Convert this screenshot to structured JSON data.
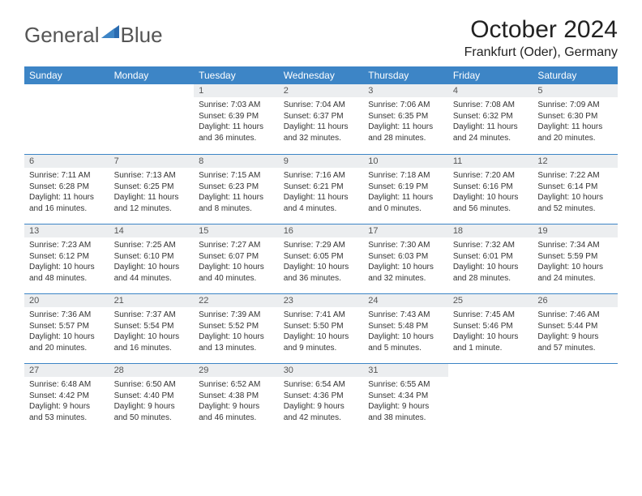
{
  "logo": {
    "part1": "General",
    "part2": "Blue"
  },
  "title": "October 2024",
  "location": "Frankfurt (Oder), Germany",
  "colors": {
    "header_bg": "#3d85c6",
    "header_text": "#ffffff",
    "daynum_bg": "#eceef0",
    "daynum_text": "#555555",
    "border": "#3d85c6",
    "body_text": "#333333",
    "logo_gray": "#555555",
    "logo_blue": "#3d85c6"
  },
  "weekdays": [
    "Sunday",
    "Monday",
    "Tuesday",
    "Wednesday",
    "Thursday",
    "Friday",
    "Saturday"
  ],
  "weeks": [
    [
      {
        "empty": true
      },
      {
        "empty": true
      },
      {
        "day": "1",
        "sunrise": "Sunrise: 7:03 AM",
        "sunset": "Sunset: 6:39 PM",
        "daylight": "Daylight: 11 hours and 36 minutes."
      },
      {
        "day": "2",
        "sunrise": "Sunrise: 7:04 AM",
        "sunset": "Sunset: 6:37 PM",
        "daylight": "Daylight: 11 hours and 32 minutes."
      },
      {
        "day": "3",
        "sunrise": "Sunrise: 7:06 AM",
        "sunset": "Sunset: 6:35 PM",
        "daylight": "Daylight: 11 hours and 28 minutes."
      },
      {
        "day": "4",
        "sunrise": "Sunrise: 7:08 AM",
        "sunset": "Sunset: 6:32 PM",
        "daylight": "Daylight: 11 hours and 24 minutes."
      },
      {
        "day": "5",
        "sunrise": "Sunrise: 7:09 AM",
        "sunset": "Sunset: 6:30 PM",
        "daylight": "Daylight: 11 hours and 20 minutes."
      }
    ],
    [
      {
        "day": "6",
        "sunrise": "Sunrise: 7:11 AM",
        "sunset": "Sunset: 6:28 PM",
        "daylight": "Daylight: 11 hours and 16 minutes."
      },
      {
        "day": "7",
        "sunrise": "Sunrise: 7:13 AM",
        "sunset": "Sunset: 6:25 PM",
        "daylight": "Daylight: 11 hours and 12 minutes."
      },
      {
        "day": "8",
        "sunrise": "Sunrise: 7:15 AM",
        "sunset": "Sunset: 6:23 PM",
        "daylight": "Daylight: 11 hours and 8 minutes."
      },
      {
        "day": "9",
        "sunrise": "Sunrise: 7:16 AM",
        "sunset": "Sunset: 6:21 PM",
        "daylight": "Daylight: 11 hours and 4 minutes."
      },
      {
        "day": "10",
        "sunrise": "Sunrise: 7:18 AM",
        "sunset": "Sunset: 6:19 PM",
        "daylight": "Daylight: 11 hours and 0 minutes."
      },
      {
        "day": "11",
        "sunrise": "Sunrise: 7:20 AM",
        "sunset": "Sunset: 6:16 PM",
        "daylight": "Daylight: 10 hours and 56 minutes."
      },
      {
        "day": "12",
        "sunrise": "Sunrise: 7:22 AM",
        "sunset": "Sunset: 6:14 PM",
        "daylight": "Daylight: 10 hours and 52 minutes."
      }
    ],
    [
      {
        "day": "13",
        "sunrise": "Sunrise: 7:23 AM",
        "sunset": "Sunset: 6:12 PM",
        "daylight": "Daylight: 10 hours and 48 minutes."
      },
      {
        "day": "14",
        "sunrise": "Sunrise: 7:25 AM",
        "sunset": "Sunset: 6:10 PM",
        "daylight": "Daylight: 10 hours and 44 minutes."
      },
      {
        "day": "15",
        "sunrise": "Sunrise: 7:27 AM",
        "sunset": "Sunset: 6:07 PM",
        "daylight": "Daylight: 10 hours and 40 minutes."
      },
      {
        "day": "16",
        "sunrise": "Sunrise: 7:29 AM",
        "sunset": "Sunset: 6:05 PM",
        "daylight": "Daylight: 10 hours and 36 minutes."
      },
      {
        "day": "17",
        "sunrise": "Sunrise: 7:30 AM",
        "sunset": "Sunset: 6:03 PM",
        "daylight": "Daylight: 10 hours and 32 minutes."
      },
      {
        "day": "18",
        "sunrise": "Sunrise: 7:32 AM",
        "sunset": "Sunset: 6:01 PM",
        "daylight": "Daylight: 10 hours and 28 minutes."
      },
      {
        "day": "19",
        "sunrise": "Sunrise: 7:34 AM",
        "sunset": "Sunset: 5:59 PM",
        "daylight": "Daylight: 10 hours and 24 minutes."
      }
    ],
    [
      {
        "day": "20",
        "sunrise": "Sunrise: 7:36 AM",
        "sunset": "Sunset: 5:57 PM",
        "daylight": "Daylight: 10 hours and 20 minutes."
      },
      {
        "day": "21",
        "sunrise": "Sunrise: 7:37 AM",
        "sunset": "Sunset: 5:54 PM",
        "daylight": "Daylight: 10 hours and 16 minutes."
      },
      {
        "day": "22",
        "sunrise": "Sunrise: 7:39 AM",
        "sunset": "Sunset: 5:52 PM",
        "daylight": "Daylight: 10 hours and 13 minutes."
      },
      {
        "day": "23",
        "sunrise": "Sunrise: 7:41 AM",
        "sunset": "Sunset: 5:50 PM",
        "daylight": "Daylight: 10 hours and 9 minutes."
      },
      {
        "day": "24",
        "sunrise": "Sunrise: 7:43 AM",
        "sunset": "Sunset: 5:48 PM",
        "daylight": "Daylight: 10 hours and 5 minutes."
      },
      {
        "day": "25",
        "sunrise": "Sunrise: 7:45 AM",
        "sunset": "Sunset: 5:46 PM",
        "daylight": "Daylight: 10 hours and 1 minute."
      },
      {
        "day": "26",
        "sunrise": "Sunrise: 7:46 AM",
        "sunset": "Sunset: 5:44 PM",
        "daylight": "Daylight: 9 hours and 57 minutes."
      }
    ],
    [
      {
        "day": "27",
        "sunrise": "Sunrise: 6:48 AM",
        "sunset": "Sunset: 4:42 PM",
        "daylight": "Daylight: 9 hours and 53 minutes."
      },
      {
        "day": "28",
        "sunrise": "Sunrise: 6:50 AM",
        "sunset": "Sunset: 4:40 PM",
        "daylight": "Daylight: 9 hours and 50 minutes."
      },
      {
        "day": "29",
        "sunrise": "Sunrise: 6:52 AM",
        "sunset": "Sunset: 4:38 PM",
        "daylight": "Daylight: 9 hours and 46 minutes."
      },
      {
        "day": "30",
        "sunrise": "Sunrise: 6:54 AM",
        "sunset": "Sunset: 4:36 PM",
        "daylight": "Daylight: 9 hours and 42 minutes."
      },
      {
        "day": "31",
        "sunrise": "Sunrise: 6:55 AM",
        "sunset": "Sunset: 4:34 PM",
        "daylight": "Daylight: 9 hours and 38 minutes."
      },
      {
        "empty": true
      },
      {
        "empty": true
      }
    ]
  ]
}
